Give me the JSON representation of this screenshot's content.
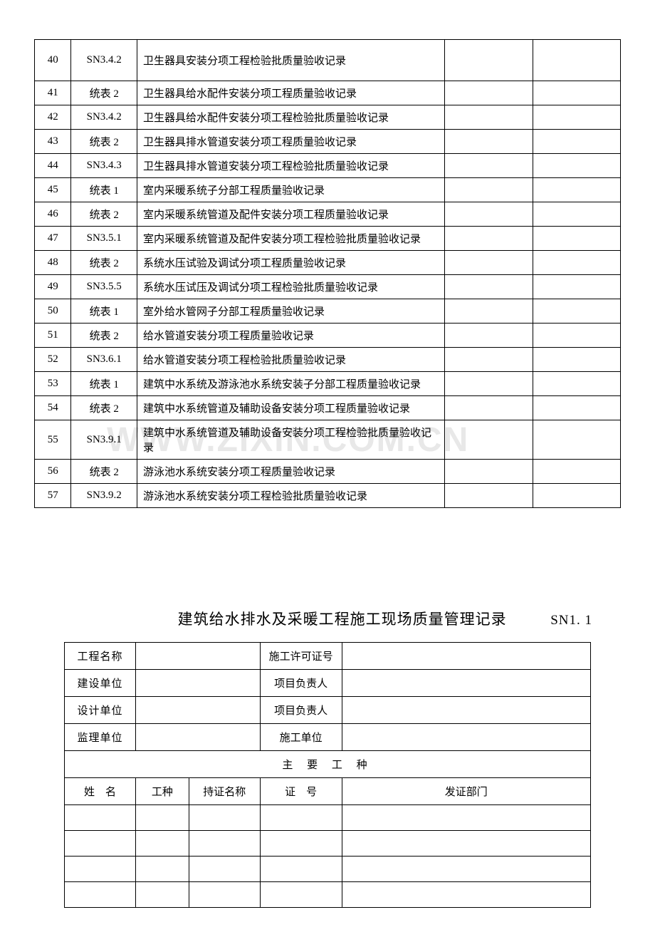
{
  "watermark": "WWW.ZIXIN.COM.CN",
  "table1": {
    "rows": [
      {
        "num": "40",
        "code": "SN3.4.2",
        "desc": "卫生器具安装分项工程检验批质量验收记录",
        "tall": true
      },
      {
        "num": "41",
        "code": "统表 2",
        "desc": "卫生器具给水配件安装分项工程质量验收记录"
      },
      {
        "num": "42",
        "code": "SN3.4.2",
        "desc": "卫生器具给水配件安装分项工程检验批质量验收记录"
      },
      {
        "num": "43",
        "code": "统表 2",
        "desc": "卫生器具排水管道安装分项工程质量验收记录"
      },
      {
        "num": "44",
        "code": "SN3.4.3",
        "desc": "卫生器具排水管道安装分项工程检验批质量验收记录"
      },
      {
        "num": "45",
        "code": "统表 1",
        "desc": "室内采暖系统子分部工程质量验收记录"
      },
      {
        "num": "46",
        "code": "统表 2",
        "desc": "室内采暖系统管道及配件安装分项工程质量验收记录"
      },
      {
        "num": "47",
        "code": "SN3.5.1",
        "desc": "室内采暖系统管道及配件安装分项工程检验批质量验收记录"
      },
      {
        "num": "48",
        "code": "统表 2",
        "desc": "系统水压试验及调试分项工程质量验收记录"
      },
      {
        "num": "49",
        "code": "SN3.5.5",
        "desc": "系统水压试压及调试分项工程检验批质量验收记录"
      },
      {
        "num": "50",
        "code": "统表 1",
        "desc": "室外给水管网子分部工程质量验收记录"
      },
      {
        "num": "51",
        "code": "统表 2",
        "desc": "给水管道安装分项工程质量验收记录"
      },
      {
        "num": "52",
        "code": "SN3.6.1",
        "desc": "给水管道安装分项工程检验批质量验收记录"
      },
      {
        "num": "53",
        "code": "统表 1",
        "desc": "建筑中水系统及游泳池水系统安装子分部工程质量验收记录"
      },
      {
        "num": "54",
        "code": "统表 2",
        "desc": "建筑中水系统管道及辅助设备安装分项工程质量验收记录"
      },
      {
        "num": "55",
        "code": "SN3.9.1",
        "desc": "建筑中水系统管道及辅助设备安装分项工程检验批质量验收记录"
      },
      {
        "num": "56",
        "code": "统表 2",
        "desc": "游泳池水系统安装分项工程质量验收记录"
      },
      {
        "num": "57",
        "code": "SN3.9.2",
        "desc": "游泳池水系统安装分项工程检验批质量验收记录"
      }
    ]
  },
  "section2": {
    "title": "建筑给水排水及采暖工程施工现场质量管理记录",
    "code": "SN1. 1",
    "header_rows": [
      {
        "l1": "工程名称",
        "l2": "施工许可证号"
      },
      {
        "l1": "建设单位",
        "l2": "项目负责人"
      },
      {
        "l1": "设计单位",
        "l2": "项目负责人"
      },
      {
        "l1": "监理单位",
        "l2": "施工单位"
      }
    ],
    "section_label": "主 要 工 种",
    "sub_headers": {
      "a": "姓　名",
      "b": "工种",
      "c": "持证名称",
      "d": "证　号",
      "e": "发证部门"
    },
    "empty_rows": 4
  }
}
